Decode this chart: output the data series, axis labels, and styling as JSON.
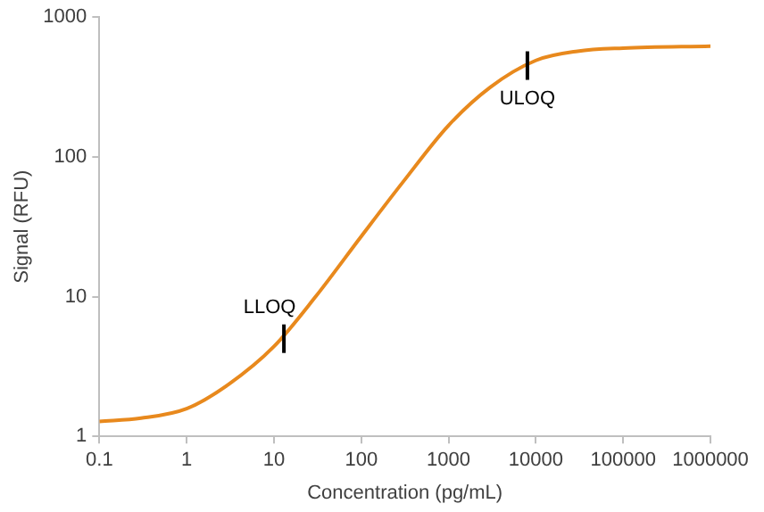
{
  "chart_data": {
    "type": "line",
    "xlabel": "Concentration (pg/mL)",
    "ylabel": "Signal (RFU)",
    "log": "xy",
    "x": [
      0.1,
      0.3,
      1,
      3,
      10,
      30,
      100,
      300,
      1000,
      3000,
      10000,
      30000,
      100000,
      1000000
    ],
    "series": [
      {
        "color": "#e8891d",
        "values": [
          1.28,
          1.35,
          1.58,
          2.35,
          4.4,
          10,
          27,
          66,
          168,
          315,
          490,
          570,
          600,
          620
        ]
      }
    ],
    "xlim": [
      0.1,
      1000000
    ],
    "xticks": [
      0.1,
      1,
      10,
      100,
      1000,
      10000,
      100000,
      1000000
    ],
    "ylim": [
      1,
      1000
    ],
    "yticks": [
      1,
      10,
      100,
      1000
    ],
    "annotations": [
      {
        "text": "LLOQ",
        "x": 13,
        "y": 5
      },
      {
        "text": "ULOQ",
        "x": 8000,
        "y": 450
      }
    ],
    "grid": false,
    "legend": false,
    "marker": "none",
    "line_style": "solid"
  }
}
